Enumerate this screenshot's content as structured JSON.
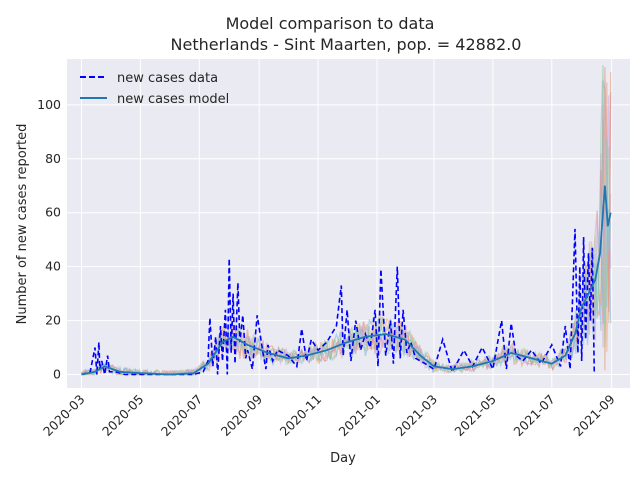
{
  "chart_data": {
    "type": "line",
    "title": "Model comparison to data",
    "subtitle": "Netherlands - Sint Maarten, pop. = 42882.0",
    "xlabel": "Day",
    "ylabel": "Number of new cases reported",
    "ylim": [
      -5,
      117
    ],
    "xlim": [
      "2020-02-15",
      "2021-09-20"
    ],
    "grid": true,
    "legend_position": "top-left",
    "x_ticks": [
      "2020-03",
      "2020-05",
      "2020-07",
      "2020-09",
      "2020-11",
      "2021-01",
      "2021-03",
      "2021-05",
      "2021-07",
      "2021-09"
    ],
    "y_ticks": [
      0,
      20,
      40,
      60,
      80,
      100
    ],
    "series": [
      {
        "name": "new cases data",
        "style": "dashed",
        "color": "#0000ff",
        "x": [
          "2020-03-01",
          "2020-03-10",
          "2020-03-15",
          "2020-03-17",
          "2020-03-19",
          "2020-03-20",
          "2020-03-22",
          "2020-03-25",
          "2020-03-28",
          "2020-03-30",
          "2020-04-05",
          "2020-04-15",
          "2020-05-01",
          "2020-06-01",
          "2020-06-25",
          "2020-07-05",
          "2020-07-10",
          "2020-07-12",
          "2020-07-15",
          "2020-07-18",
          "2020-07-20",
          "2020-07-23",
          "2020-07-25",
          "2020-07-28",
          "2020-07-30",
          "2020-08-01",
          "2020-08-03",
          "2020-08-05",
          "2020-08-07",
          "2020-08-10",
          "2020-08-12",
          "2020-08-15",
          "2020-08-18",
          "2020-08-20",
          "2020-08-25",
          "2020-08-30",
          "2020-09-05",
          "2020-09-08",
          "2020-09-10",
          "2020-09-15",
          "2020-09-20",
          "2020-10-01",
          "2020-10-10",
          "2020-10-15",
          "2020-10-20",
          "2020-10-25",
          "2020-11-01",
          "2020-11-10",
          "2020-11-20",
          "2020-11-25",
          "2020-11-27",
          "2020-12-01",
          "2020-12-05",
          "2020-12-10",
          "2020-12-15",
          "2020-12-20",
          "2020-12-25",
          "2020-12-30",
          "2021-01-02",
          "2021-01-05",
          "2021-01-10",
          "2021-01-15",
          "2021-01-18",
          "2021-01-22",
          "2021-01-25",
          "2021-01-28",
          "2021-02-01",
          "2021-02-05",
          "2021-02-10",
          "2021-02-20",
          "2021-03-01",
          "2021-03-10",
          "2021-03-20",
          "2021-04-01",
          "2021-04-10",
          "2021-04-20",
          "2021-05-01",
          "2021-05-05",
          "2021-05-10",
          "2021-05-15",
          "2021-05-20",
          "2021-05-25",
          "2021-06-01",
          "2021-06-10",
          "2021-06-20",
          "2021-07-01",
          "2021-07-10",
          "2021-07-15",
          "2021-07-20",
          "2021-07-25",
          "2021-07-28",
          "2021-07-30",
          "2021-08-01",
          "2021-08-03",
          "2021-08-05",
          "2021-08-08",
          "2021-08-10",
          "2021-08-12",
          "2021-08-14"
        ],
        "y": [
          0,
          1,
          10,
          0,
          12,
          2,
          5,
          0,
          7,
          1,
          1,
          0,
          0,
          0,
          0,
          1,
          5,
          21,
          3,
          14,
          0,
          18,
          5,
          24,
          0,
          43,
          8,
          30,
          4,
          34,
          12,
          22,
          6,
          9,
          2,
          22,
          8,
          2,
          11,
          5,
          9,
          7,
          3,
          17,
          5,
          13,
          9,
          12,
          18,
          33,
          7,
          24,
          5,
          20,
          9,
          15,
          10,
          24,
          3,
          39,
          7,
          20,
          4,
          40,
          6,
          24,
          8,
          12,
          6,
          4,
          2,
          13,
          1,
          9,
          3,
          10,
          2,
          10,
          20,
          2,
          19,
          7,
          5,
          9,
          4,
          11,
          3,
          18,
          2,
          54,
          8,
          40,
          5,
          51,
          13,
          45,
          20,
          47,
          0
        ]
      },
      {
        "name": "new cases model",
        "style": "solid",
        "color": "#1f77b4",
        "x": [
          "2020-03-01",
          "2020-03-15",
          "2020-03-25",
          "2020-04-10",
          "2020-05-01",
          "2020-06-01",
          "2020-06-25",
          "2020-07-10",
          "2020-07-25",
          "2020-08-05",
          "2020-08-20",
          "2020-09-10",
          "2020-10-01",
          "2020-10-20",
          "2020-11-10",
          "2020-12-01",
          "2020-12-20",
          "2021-01-10",
          "2021-01-30",
          "2021-02-15",
          "2021-03-01",
          "2021-03-20",
          "2021-04-10",
          "2021-05-01",
          "2021-05-20",
          "2021-06-10",
          "2021-07-01",
          "2021-07-15",
          "2021-07-25",
          "2021-08-01",
          "2021-08-08",
          "2021-08-15",
          "2021-08-20",
          "2021-08-25",
          "2021-08-28",
          "2021-08-31"
        ],
        "y": [
          0,
          1,
          3,
          1,
          0.5,
          0,
          0.5,
          4,
          12,
          14,
          11,
          8,
          6,
          7,
          9,
          12,
          14,
          15,
          13,
          7,
          3,
          2,
          3,
          5,
          8,
          6,
          4,
          7,
          15,
          25,
          30,
          35,
          45,
          70,
          55,
          60
        ]
      }
    ]
  }
}
